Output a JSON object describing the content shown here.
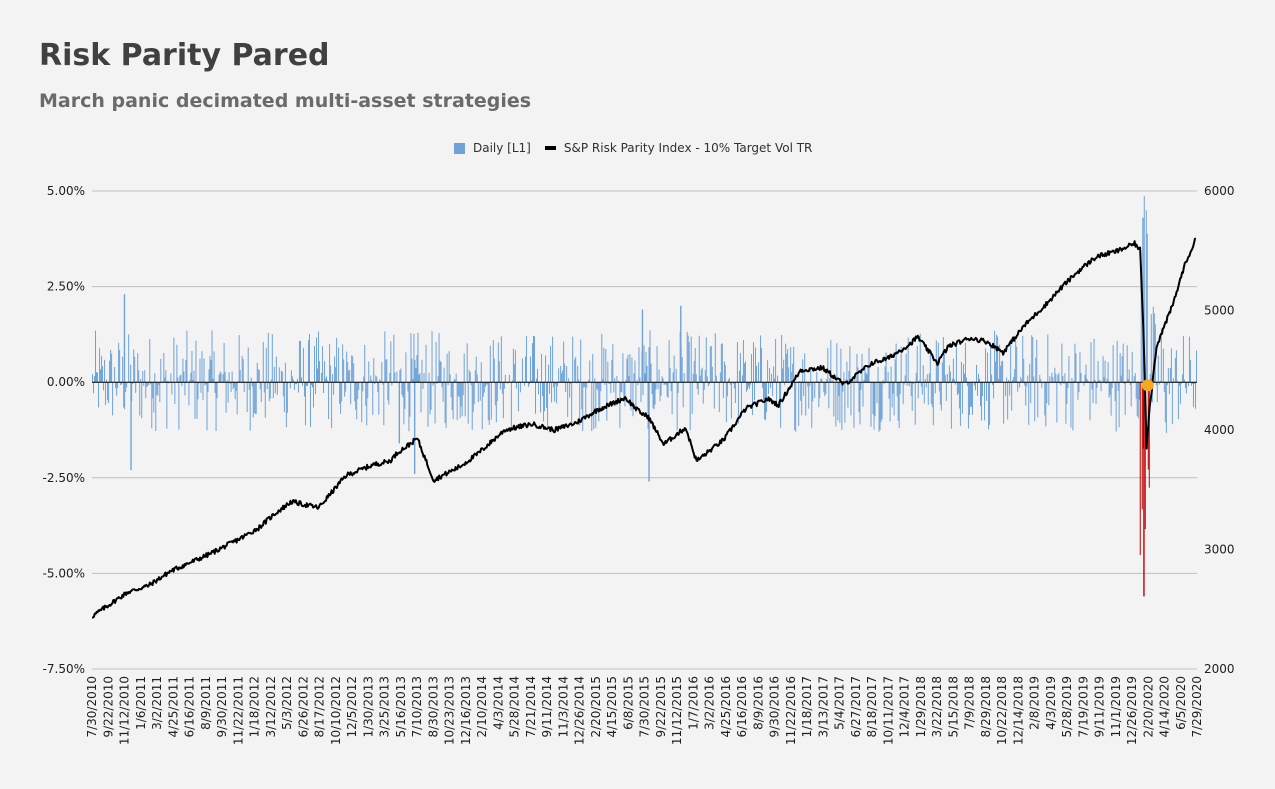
{
  "title": "Risk Parity Pared",
  "subtitle": "March panic decimated multi-asset strategies",
  "legend": {
    "daily_label": "Daily [L1]",
    "index_label": "S&P Risk Parity Index - 10% Target Vol TR"
  },
  "colors": {
    "background": "#f3f3f3",
    "bars_positive": "#6fa3d8",
    "bars_crash": "#c00000",
    "index_line": "#000000",
    "marker": "#f5a623",
    "gridline": "#c0c0c0"
  },
  "chart_data": {
    "type": "combo",
    "title": "Risk Parity Pared",
    "subtitle": "March panic decimated multi-asset strategies",
    "left_axis": {
      "series": "Daily [L1]",
      "ylim": [
        -7.5,
        5.0
      ],
      "ticks": [
        "5.00%",
        "2.50%",
        "0.00%",
        "-2.50%",
        "-5.00%",
        "-7.50%"
      ]
    },
    "right_axis": {
      "series": "S&P Risk Parity Index - 10% Target Vol TR",
      "ylim": [
        2000,
        6000
      ],
      "ticks": [
        "6000",
        "5000",
        "4000",
        "3000",
        "2000"
      ]
    },
    "x_range": [
      "7/30/2010",
      "8/31/2020"
    ],
    "x_tick_labels": [
      "7/30/2010",
      "9/22/2010",
      "11/12/2010",
      "1/6/2011",
      "3/2/2011",
      "4/25/2011",
      "6/16/2011",
      "8/9/2011",
      "9/30/2011",
      "11/22/2011",
      "1/18/2012",
      "3/12/2012",
      "5/3/2012",
      "6/26/2012",
      "8/17/2012",
      "10/10/2012",
      "12/5/2012",
      "1/30/2013",
      "3/25/2013",
      "5/16/2013",
      "7/10/2013",
      "8/30/2013",
      "10/23/2013",
      "12/16/2013",
      "2/10/2014",
      "4/3/2014",
      "5/28/2014",
      "7/21/2014",
      "9/11/2014",
      "11/3/2014",
      "12/26/2014",
      "2/20/2015",
      "4/15/2015",
      "6/8/2015",
      "7/30/2015",
      "9/22/2015",
      "11/12/2015",
      "1/7/2016",
      "3/2/2016",
      "4/25/2016",
      "6/16/2016",
      "8/9/2016",
      "9/30/2016",
      "11/22/2016",
      "1/18/2017",
      "3/13/2017",
      "5/4/2017",
      "6/27/2017",
      "8/18/2017",
      "10/11/2017",
      "12/4/2017",
      "1/29/2018",
      "3/22/2018",
      "5/15/2018",
      "7/9/2018",
      "8/29/2018",
      "10/22/2018",
      "12/14/2018",
      "2/8/2019",
      "4/3/2019",
      "5/28/2019",
      "7/19/2019",
      "9/11/2019",
      "11/1/2019",
      "12/26/2019",
      "2/20/2020",
      "4/14/2020",
      "6/5/2020",
      "7/29/2020"
    ],
    "index_series": {
      "name": "S&P Risk Parity Index - 10% Target Vol TR",
      "x": [
        2010.58,
        2010.9,
        2011.1,
        2011.3,
        2011.5,
        2011.65,
        2011.8,
        2011.95,
        2012.1,
        2012.25,
        2012.4,
        2012.5,
        2012.65,
        2012.9,
        2013.15,
        2013.3,
        2013.38,
        2013.45,
        2013.55,
        2013.7,
        2013.95,
        2014.1,
        2014.35,
        2014.6,
        2014.8,
        2015.0,
        2015.2,
        2015.3,
        2015.45,
        2015.58,
        2015.66,
        2015.8,
        2016.0,
        2016.1,
        2016.35,
        2016.55,
        2016.75,
        2016.85,
        2017.05,
        2017.25,
        2017.45,
        2017.7,
        2017.85,
        2018.05,
        2018.12,
        2018.3,
        2018.4,
        2018.6,
        2018.75,
        2018.9,
        2019.1,
        2019.3,
        2019.45,
        2019.6,
        2019.75,
        2019.95,
        2020.1,
        2020.15,
        2020.18,
        2020.21,
        2020.23,
        2020.3,
        2020.45,
        2020.55,
        2020.66
      ],
      "y": [
        2440,
        2640,
        2700,
        2820,
        2900,
        2960,
        3030,
        3100,
        3180,
        3300,
        3400,
        3380,
        3350,
        3620,
        3710,
        3740,
        3820,
        3860,
        3930,
        3580,
        3700,
        3800,
        4000,
        4050,
        4000,
        4060,
        4170,
        4210,
        4270,
        4150,
        4110,
        3880,
        4020,
        3740,
        3920,
        4180,
        4260,
        4210,
        4500,
        4520,
        4380,
        4560,
        4600,
        4720,
        4780,
        4560,
        4700,
        4770,
        4740,
        4650,
        4880,
        5060,
        5210,
        5340,
        5450,
        5500,
        5560,
        5510,
        4870,
        3860,
        4120,
        4700,
        5050,
        5360,
        5600
      ]
    },
    "daily_series": {
      "name": "Daily [L1]",
      "note": "Approximately 2,500 daily returns; typical range -1.5% to +2.4%, extremes around March 2020 of about +4.3% and -5.6%.",
      "notable_values": [
        {
          "x": "11/2010",
          "y": 2.3
        },
        {
          "x": "12/2010",
          "y": -2.3
        },
        {
          "x": "5/2013",
          "y": -1.6
        },
        {
          "x": "7/2013",
          "y": -2.4
        },
        {
          "x": "8/2015",
          "y": 1.9
        },
        {
          "x": "9/2015",
          "y": -2.6
        },
        {
          "x": "12/2015",
          "y": 2.0
        },
        {
          "x": "3/2020",
          "y": 4.3
        },
        {
          "x": "3/2020",
          "y": -5.6
        }
      ]
    },
    "crash_period": [
      "2/20/2020",
      "3/23/2020"
    ],
    "grid": true
  }
}
